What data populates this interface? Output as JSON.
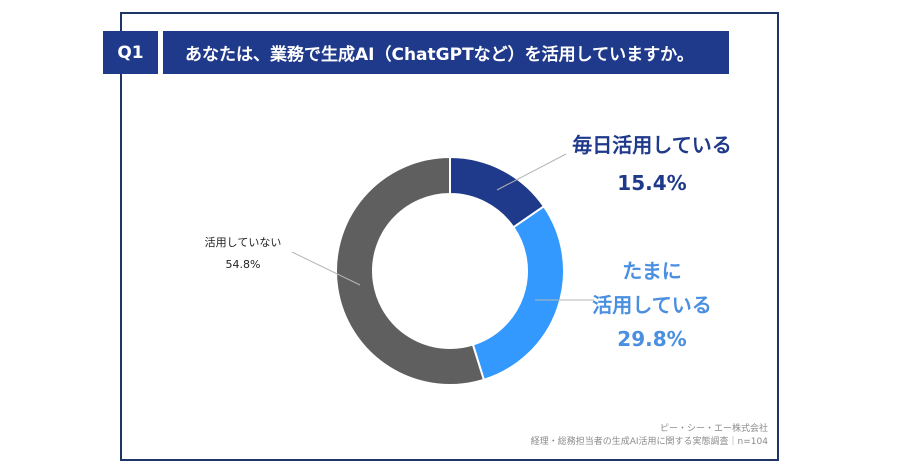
{
  "question": {
    "badge": "Q1",
    "text": "あなたは、業務で生成AI（ChatGPTなど）を活用していますか。"
  },
  "chart_data": {
    "type": "pie",
    "donut": true,
    "categories": [
      "毎日活用している",
      "たまに活用している",
      "活用していない"
    ],
    "values": [
      15.4,
      29.8,
      54.8
    ],
    "value_labels": [
      "15.4%",
      "29.8%",
      "54.8%"
    ],
    "colors": [
      "#1f3a8a",
      "#3399ff",
      "#5f5f5f"
    ],
    "title": "",
    "label_lines": {
      "daily": [
        "毎日活用している",
        "15.4%"
      ],
      "sometimes": [
        "たまに",
        "活用している",
        "29.8%"
      ],
      "never": [
        "活用していない",
        "54.8%"
      ]
    }
  },
  "footer": {
    "company": "ピー・シー・エー株式会社",
    "survey": "経理・総務担当者の生成AI活用に関する実態調査｜n=104"
  }
}
